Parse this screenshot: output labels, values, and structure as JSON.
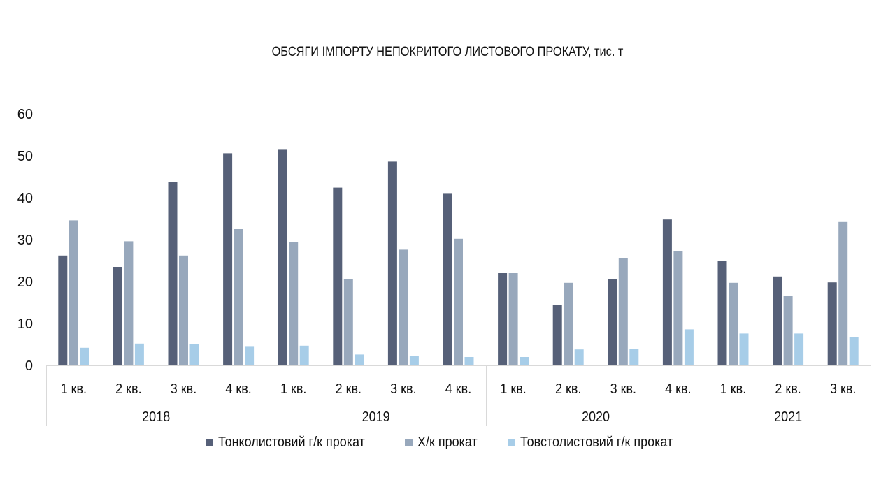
{
  "chart_data": {
    "type": "bar",
    "title": "ОБСЯГИ ІМПОРТУ НЕПОКРИТОГО ЛИСТОВОГО ПРОКАТУ, тис. т",
    "xlabel": "",
    "ylabel": "",
    "ylim": [
      0,
      60
    ],
    "yticks": [
      0,
      10,
      20,
      30,
      40,
      50,
      60
    ],
    "grid": false,
    "legend_position": "bottom",
    "groups": [
      {
        "label": "2018",
        "categories": [
          "1 кв.",
          "2 кв.",
          "3 кв.",
          "4 кв."
        ]
      },
      {
        "label": "2019",
        "categories": [
          "1 кв.",
          "2 кв.",
          "3 кв.",
          "4 кв."
        ]
      },
      {
        "label": "2020",
        "categories": [
          "1 кв.",
          "2 кв.",
          "3 кв.",
          "4 кв."
        ]
      },
      {
        "label": "2021",
        "categories": [
          "1 кв.",
          "2 кв.",
          "3 кв."
        ]
      }
    ],
    "series": [
      {
        "name": "Тонколистовий г/к прокат",
        "color": "#566078",
        "values": [
          26.2,
          23.5,
          43.8,
          50.6,
          51.6,
          42.4,
          48.6,
          41.1,
          22.0,
          14.4,
          20.5,
          34.8,
          25.0,
          21.2,
          19.8
        ]
      },
      {
        "name": "Х/к прокат",
        "color": "#98a8bc",
        "values": [
          34.6,
          29.6,
          26.2,
          32.5,
          29.5,
          20.6,
          27.6,
          30.2,
          22.0,
          19.7,
          25.5,
          27.3,
          19.7,
          16.6,
          34.2
        ]
      },
      {
        "name": "Товстолистовий г/к прокат",
        "color": "#a7cde8",
        "values": [
          4.2,
          5.2,
          5.1,
          4.6,
          4.7,
          2.6,
          2.3,
          2.0,
          2.0,
          3.8,
          4.0,
          8.6,
          7.6,
          7.6,
          6.7
        ]
      }
    ]
  }
}
